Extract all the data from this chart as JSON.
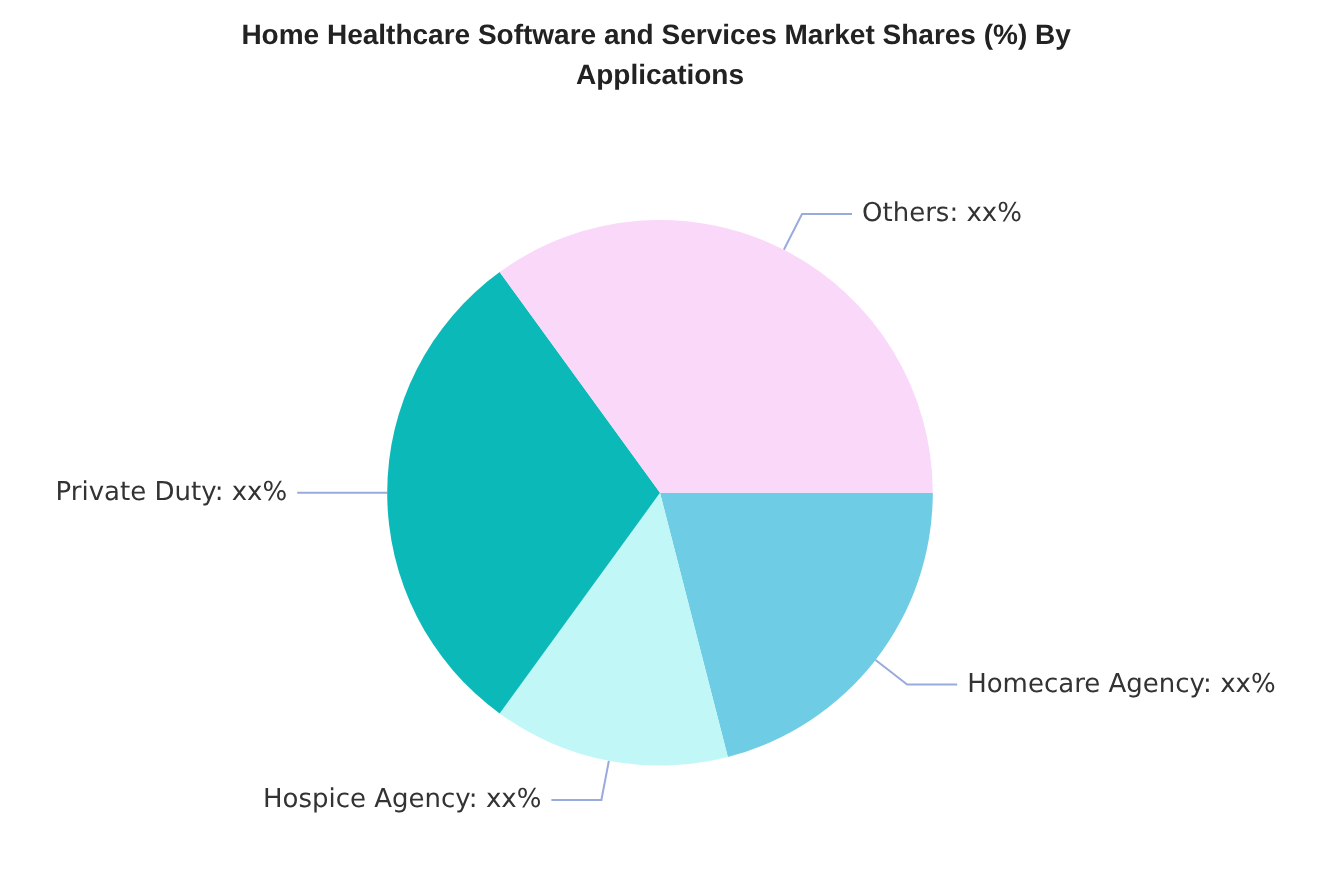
{
  "chart_data": {
    "type": "pie",
    "title": "Home Healthcare Software and Services Market Shares (%) By Applications",
    "categories": [
      "Homecare Agency",
      "Hospice Agency",
      "Private Duty",
      "Others"
    ],
    "values": [
      21,
      14,
      30,
      35
    ],
    "colors": [
      "#6ecde4",
      "#c1f7f7",
      "#0bb9b9",
      "#fad8fa"
    ],
    "value_labels": [
      "xx%",
      "xx%",
      "xx%",
      "xx%"
    ],
    "legend": false
  }
}
